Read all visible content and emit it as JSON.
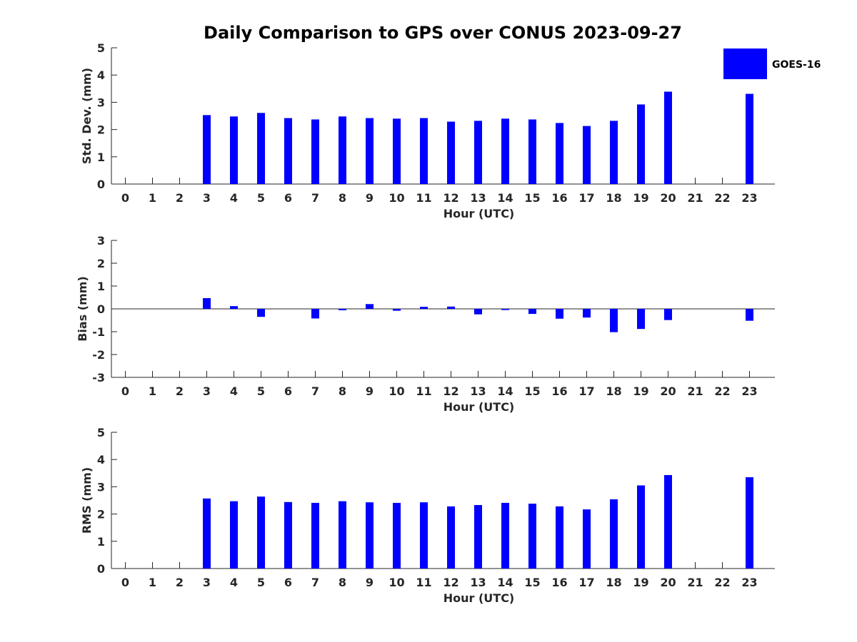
{
  "chart_data": [
    {
      "type": "bar",
      "title": "Daily Comparison to GPS over CONUS 2023-09-27",
      "xlabel": "Hour (UTC)",
      "ylabel": "Std. Dev. (mm)",
      "categories": [
        "0",
        "1",
        "2",
        "3",
        "4",
        "5",
        "6",
        "7",
        "8",
        "9",
        "10",
        "11",
        "12",
        "13",
        "14",
        "15",
        "16",
        "17",
        "18",
        "19",
        "20",
        "21",
        "22",
        "23"
      ],
      "ylim": [
        0,
        5
      ],
      "yticks": [
        "0",
        "1",
        "2",
        "3",
        "4",
        "5"
      ],
      "series": [
        {
          "name": "GOES-16",
          "color": "#0000ff",
          "values": [
            null,
            null,
            null,
            2.53,
            2.48,
            2.61,
            2.42,
            2.37,
            2.48,
            2.42,
            2.4,
            2.42,
            2.29,
            2.32,
            2.4,
            2.37,
            2.24,
            2.13,
            2.32,
            2.92,
            3.39,
            null,
            null,
            3.31
          ]
        }
      ],
      "legend": {
        "position": "top-right",
        "entries": [
          "GOES-16"
        ]
      }
    },
    {
      "type": "bar",
      "title": "",
      "xlabel": "Hour (UTC)",
      "ylabel": "Bias (mm)",
      "categories": [
        "0",
        "1",
        "2",
        "3",
        "4",
        "5",
        "6",
        "7",
        "8",
        "9",
        "10",
        "11",
        "12",
        "13",
        "14",
        "15",
        "16",
        "17",
        "18",
        "19",
        "20",
        "21",
        "22",
        "23"
      ],
      "ylim": [
        -3,
        3
      ],
      "yticks": [
        "-3",
        "-2",
        "-1",
        "0",
        "1",
        "2",
        "3"
      ],
      "series": [
        {
          "name": "GOES-16",
          "color": "#0000ff",
          "values": [
            null,
            null,
            null,
            0.47,
            0.12,
            -0.35,
            0.0,
            -0.42,
            -0.06,
            0.21,
            -0.08,
            0.09,
            0.1,
            -0.24,
            -0.05,
            -0.22,
            -0.43,
            -0.38,
            -1.02,
            -0.88,
            -0.49,
            null,
            null,
            -0.52
          ]
        }
      ]
    },
    {
      "type": "bar",
      "title": "",
      "xlabel": "Hour (UTC)",
      "ylabel": "RMS (mm)",
      "categories": [
        "0",
        "1",
        "2",
        "3",
        "4",
        "5",
        "6",
        "7",
        "8",
        "9",
        "10",
        "11",
        "12",
        "13",
        "14",
        "15",
        "16",
        "17",
        "18",
        "19",
        "20",
        "21",
        "22",
        "23"
      ],
      "ylim": [
        0,
        5
      ],
      "yticks": [
        "0",
        "1",
        "2",
        "3",
        "4",
        "5"
      ],
      "series": [
        {
          "name": "GOES-16",
          "color": "#0000ff",
          "values": [
            null,
            null,
            null,
            2.57,
            2.47,
            2.64,
            2.44,
            2.41,
            2.47,
            2.43,
            2.41,
            2.43,
            2.28,
            2.33,
            2.41,
            2.38,
            2.28,
            2.17,
            2.54,
            3.05,
            3.43,
            null,
            null,
            3.35
          ]
        }
      ]
    }
  ]
}
